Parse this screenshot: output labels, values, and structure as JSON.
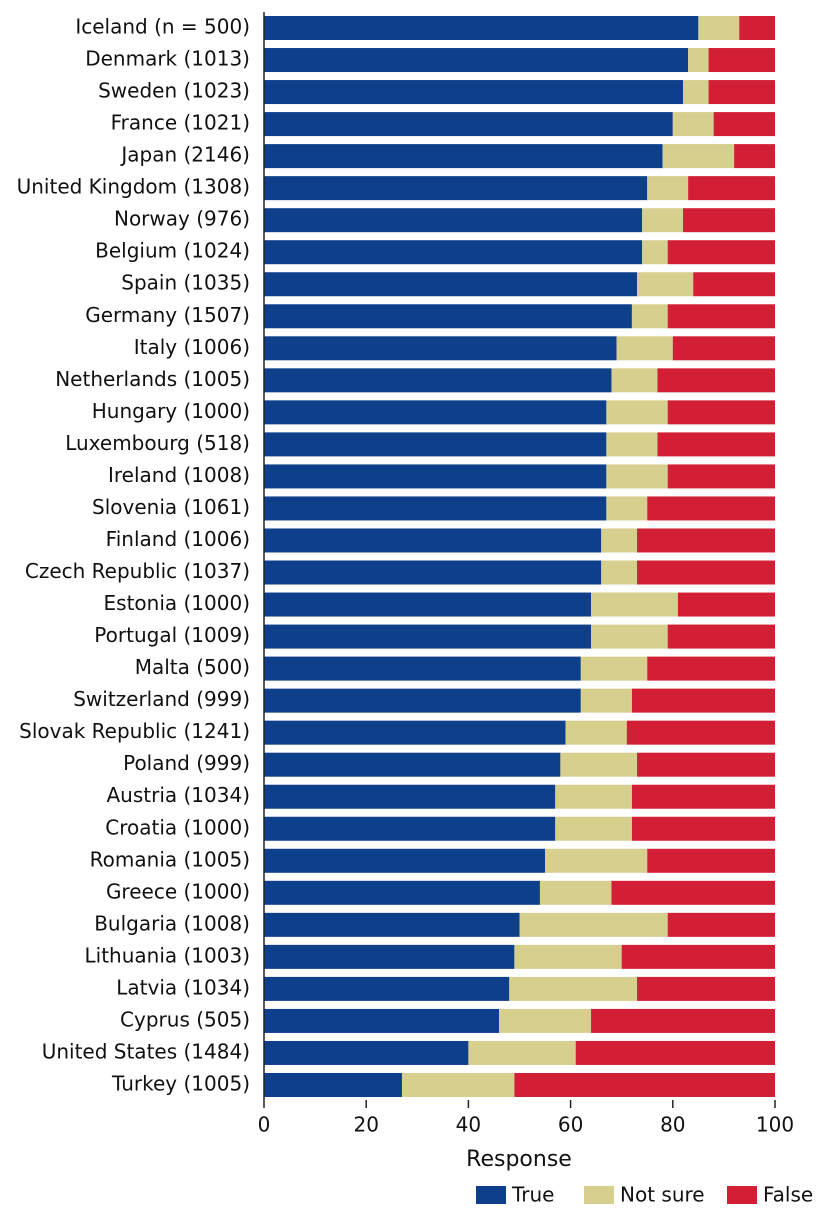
{
  "chart_data": {
    "type": "stacked-bar-horizontal",
    "x_label": "Response",
    "categories": [
      "Iceland (n = 500)",
      "Denmark (1013)",
      "Sweden (1023)",
      "France (1021)",
      "Japan (2146)",
      "United Kingdom (1308)",
      "Norway (976)",
      "Belgium (1024)",
      "Spain (1035)",
      "Germany (1507)",
      "Italy (1006)",
      "Netherlands (1005)",
      "Hungary (1000)",
      "Luxembourg (518)",
      "Ireland (1008)",
      "Slovenia (1061)",
      "Finland (1006)",
      "Czech Republic (1037)",
      "Estonia (1000)",
      "Portugal (1009)",
      "Malta (500)",
      "Switzerland (999)",
      "Slovak Republic (1241)",
      "Poland (999)",
      "Austria (1034)",
      "Croatia (1000)",
      "Romania (1005)",
      "Greece (1000)",
      "Bulgaria (1008)",
      "Lithuania (1003)",
      "Latvia (1034)",
      "Cyprus (505)",
      "United States (1484)",
      "Turkey (1005)"
    ],
    "series": [
      {
        "name": "True",
        "color": "#0d3f8a",
        "values": [
          85,
          83,
          82,
          80,
          78,
          75,
          74,
          74,
          73,
          72,
          69,
          68,
          67,
          67,
          67,
          67,
          66,
          66,
          64,
          64,
          62,
          62,
          59,
          58,
          57,
          57,
          55,
          54,
          50,
          49,
          48,
          46,
          40,
          27
        ]
      },
      {
        "name": "Not sure",
        "color": "#d6cf8e",
        "values": [
          8,
          4,
          5,
          8,
          14,
          8,
          8,
          5,
          11,
          7,
          11,
          9,
          12,
          10,
          12,
          8,
          7,
          7,
          17,
          15,
          13,
          10,
          12,
          15,
          15,
          15,
          20,
          14,
          29,
          21,
          25,
          18,
          21,
          22
        ]
      },
      {
        "name": "False",
        "color": "#d21f36",
        "values": [
          7,
          13,
          13,
          12,
          8,
          17,
          18,
          21,
          16,
          21,
          20,
          23,
          21,
          23,
          21,
          25,
          27,
          27,
          19,
          21,
          25,
          28,
          29,
          27,
          28,
          28,
          25,
          32,
          21,
          30,
          27,
          36,
          39,
          51
        ]
      }
    ],
    "xlim": [
      0,
      100
    ],
    "xticks": [
      0,
      20,
      40,
      60,
      80,
      100
    ]
  }
}
